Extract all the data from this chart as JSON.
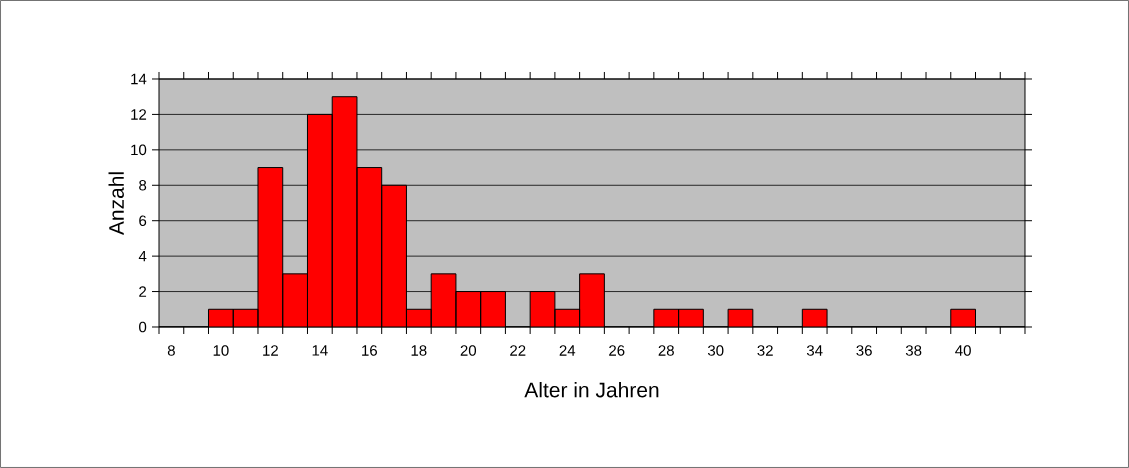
{
  "chart_data": {
    "type": "bar",
    "xlabel": "Alter in Jahren",
    "ylabel": "Anzahl",
    "categories": [
      "8",
      null,
      "10",
      null,
      "12",
      null,
      "14",
      null,
      "16",
      null,
      "18",
      null,
      "20",
      null,
      "22",
      null,
      "24",
      null,
      "26",
      null,
      "28",
      null,
      "30",
      null,
      "32",
      null,
      "34",
      null,
      "36",
      null,
      "38",
      null,
      "40",
      null,
      null
    ],
    "values": [
      0,
      0,
      1,
      1,
      9,
      3,
      12,
      13,
      9,
      8,
      1,
      3,
      2,
      2,
      0,
      2,
      1,
      3,
      0,
      0,
      1,
      1,
      0,
      1,
      0,
      0,
      1,
      0,
      0,
      0,
      0,
      0,
      1,
      0,
      0
    ],
    "color": "#ff0000",
    "ylim": [
      0,
      14
    ],
    "yticks": [
      0,
      2,
      4,
      6,
      8,
      10,
      12,
      14
    ],
    "grid": "y"
  }
}
